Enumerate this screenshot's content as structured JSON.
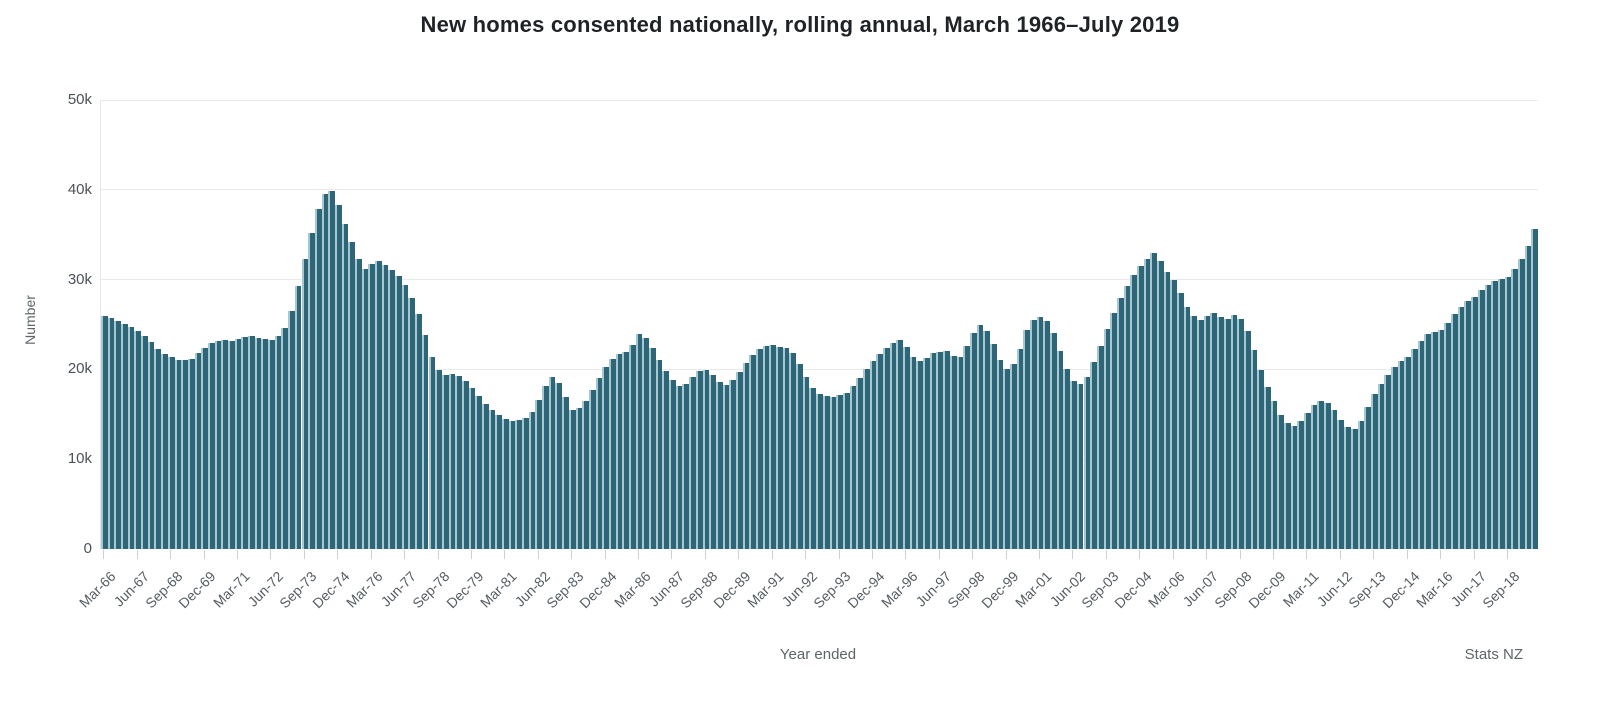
{
  "title": "New homes consented nationally, rolling annual, March 1966–July 2019",
  "source_note": "Stats NZ",
  "colors": {
    "bar": "#2e6577",
    "bar_light_stripe": "#a6c8d3",
    "gridline": "#e9eaeb",
    "axis_text": "#555e64",
    "title_text": "#1f2327"
  },
  "chart_data": {
    "type": "bar",
    "title": "New homes consented nationally, rolling annual, March 1966–July 2019",
    "xlabel": "Year ended",
    "ylabel": "Number",
    "ylim": [
      0,
      50000
    ],
    "grid": true,
    "legend_position": "none",
    "y_ticks": [
      {
        "value": 0,
        "label": "0"
      },
      {
        "value": 10000,
        "label": "10k"
      },
      {
        "value": 20000,
        "label": "20k"
      },
      {
        "value": 30000,
        "label": "30k"
      },
      {
        "value": 40000,
        "label": "40k"
      },
      {
        "value": 50000,
        "label": "50k"
      }
    ],
    "x_tick_every": 5,
    "x_tick_labels": [
      "Mar-66",
      "Jun-67",
      "Sep-68",
      "Dec-69",
      "Mar-71",
      "Jun-72",
      "Sep-73",
      "Dec-74",
      "Mar-76",
      "Jun-77",
      "Sep-78",
      "Dec-79",
      "Mar-81",
      "Jun-82",
      "Sep-83",
      "Dec-84",
      "Mar-86",
      "Jun-87",
      "Sep-88",
      "Dec-89",
      "Mar-91",
      "Jun-92",
      "Sep-93",
      "Dec-94",
      "Mar-96",
      "Jun-97",
      "Sep-98",
      "Dec-99",
      "Mar-01",
      "Jun-02",
      "Sep-03",
      "Dec-04",
      "Mar-06",
      "Jun-07",
      "Sep-08",
      "Dec-09",
      "Mar-11",
      "Jun-12",
      "Sep-13",
      "Dec-14",
      "Mar-16",
      "Jun-17",
      "Sep-18"
    ],
    "period": "quarterly, Mar-1966 to Jul-2019",
    "values": [
      26000,
      25700,
      25400,
      25100,
      24700,
      24300,
      23700,
      23000,
      22300,
      21700,
      21400,
      21100,
      21000,
      21200,
      21800,
      22400,
      22900,
      23200,
      23300,
      23200,
      23400,
      23600,
      23700,
      23500,
      23400,
      23300,
      23700,
      24600,
      26500,
      29300,
      32300,
      35200,
      37900,
      39500,
      39900,
      38300,
      36200,
      34200,
      32300,
      31200,
      31700,
      32100,
      31600,
      31100,
      30400,
      29400,
      28000,
      26200,
      23800,
      21400,
      19900,
      19400,
      19500,
      19300,
      18700,
      17900,
      17000,
      16200,
      15500,
      14900,
      14500,
      14300,
      14400,
      14600,
      15300,
      16600,
      18200,
      19100,
      18500,
      16900,
      15500,
      15700,
      16500,
      17700,
      19000,
      20300,
      21200,
      21700,
      21900,
      22700,
      23900,
      23500,
      22400,
      21100,
      19800,
      18800,
      18200,
      18400,
      19100,
      19800,
      19900,
      19400,
      18600,
      18300,
      18800,
      19700,
      20700,
      21600,
      22300,
      22600,
      22700,
      22500,
      22400,
      21800,
      20600,
      19100,
      17900,
      17300,
      17000,
      16900,
      17100,
      17400,
      18100,
      19000,
      20100,
      20900,
      21700,
      22400,
      22900,
      23300,
      22500,
      21400,
      20900,
      21300,
      21800,
      21900,
      22000,
      21500,
      21400,
      22600,
      24000,
      25000,
      24300,
      22800,
      21100,
      20000,
      20600,
      22300,
      24400,
      25500,
      25800,
      25400,
      24000,
      22100,
      20100,
      18700,
      18400,
      19200,
      20800,
      22600,
      24500,
      26300,
      27900,
      29300,
      30500,
      31500,
      32300,
      33000,
      32100,
      30900,
      30000,
      28500,
      27000,
      25900,
      25500,
      25900,
      26300,
      25800,
      25600,
      26100,
      25600,
      24300,
      22200,
      19900,
      18000,
      16500,
      14900,
      14000,
      13700,
      14300,
      15200,
      16000,
      16500,
      16300,
      15500,
      14400,
      13600,
      13400,
      14200,
      15800,
      17300,
      18400,
      19400,
      20300,
      20900,
      21400,
      22300,
      23200,
      23900,
      24200,
      24400,
      25200,
      26200,
      27000,
      27600,
      28100,
      28800,
      29400,
      29800,
      30100,
      30300,
      31200,
      32300,
      33700,
      35600
    ]
  }
}
